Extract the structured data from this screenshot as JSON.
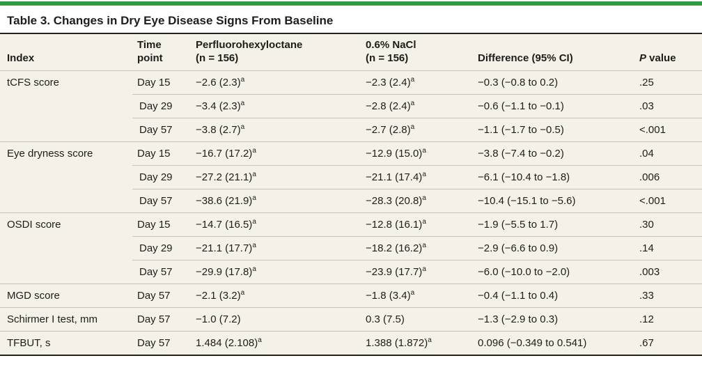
{
  "colors": {
    "accent": "#2e9d40",
    "table_bg": "#f3f1e8",
    "rule": "#22211c",
    "divider": "#c6c4b7"
  },
  "title": "Table 3. Changes in Dry Eye Disease Signs From Baseline",
  "table": {
    "header": {
      "index": "Index",
      "time_point": "Time\npoint",
      "drug": "Perfluorohexyloctane\n(n = 156)",
      "control": "0.6% NaCl\n(n = 156)",
      "difference": "Difference (95% CI)",
      "p_italic": "P",
      "p_rest": " value"
    },
    "groups": [
      {
        "index": "tCFS score",
        "rows": [
          {
            "time": "Day 15",
            "drug": "−2.6 (2.3)",
            "drug_sup": "a",
            "control": "−2.3 (2.4)",
            "control_sup": "a",
            "diff": "−0.3 (−0.8 to 0.2)",
            "p": ".25"
          },
          {
            "time": "Day 29",
            "drug": "−3.4 (2.3)",
            "drug_sup": "a",
            "control": "−2.8 (2.4)",
            "control_sup": "a",
            "diff": "−0.6 (−1.1 to −0.1)",
            "p": ".03"
          },
          {
            "time": "Day 57",
            "drug": "−3.8 (2.7)",
            "drug_sup": "a",
            "control": "−2.7 (2.8)",
            "control_sup": "a",
            "diff": "−1.1 (−1.7 to −0.5)",
            "p": "<.001"
          }
        ]
      },
      {
        "index": "Eye dryness score",
        "rows": [
          {
            "time": "Day 15",
            "drug": "−16.7 (17.2)",
            "drug_sup": "a",
            "control": "−12.9 (15.0)",
            "control_sup": "a",
            "diff": "−3.8 (−7.4 to −0.2)",
            "p": ".04"
          },
          {
            "time": "Day 29",
            "drug": "−27.2 (21.1)",
            "drug_sup": "a",
            "control": "−21.1 (17.4)",
            "control_sup": "a",
            "diff": "−6.1 (−10.4 to −1.8)",
            "p": ".006"
          },
          {
            "time": "Day 57",
            "drug": "−38.6 (21.9)",
            "drug_sup": "a",
            "control": "−28.3 (20.8)",
            "control_sup": "a",
            "diff": "−10.4 (−15.1 to −5.6)",
            "p": "<.001"
          }
        ]
      },
      {
        "index": "OSDI score",
        "rows": [
          {
            "time": "Day 15",
            "drug": "−14.7 (16.5)",
            "drug_sup": "a",
            "control": "−12.8 (16.1)",
            "control_sup": "a",
            "diff": "−1.9 (−5.5 to 1.7)",
            "p": ".30"
          },
          {
            "time": "Day 29",
            "drug": "−21.1 (17.7)",
            "drug_sup": "a",
            "control": "−18.2 (16.2)",
            "control_sup": "a",
            "diff": "−2.9 (−6.6 to 0.9)",
            "p": ".14"
          },
          {
            "time": "Day 57",
            "drug": "−29.9 (17.8)",
            "drug_sup": "a",
            "control": "−23.9 (17.7)",
            "control_sup": "a",
            "diff": "−6.0 (−10.0 to −2.0)",
            "p": ".003"
          }
        ]
      },
      {
        "index": "MGD score",
        "rows": [
          {
            "time": "Day 57",
            "drug": "−2.1 (3.2)",
            "drug_sup": "a",
            "control": "−1.8 (3.4)",
            "control_sup": "a",
            "diff": "−0.4 (−1.1 to 0.4)",
            "p": ".33"
          }
        ]
      },
      {
        "index": "Schirmer I test, mm",
        "rows": [
          {
            "time": "Day 57",
            "drug": "−1.0 (7.2)",
            "drug_sup": null,
            "control": "0.3 (7.5)",
            "control_sup": null,
            "diff": "−1.3 (−2.9 to 0.3)",
            "p": ".12"
          }
        ]
      },
      {
        "index": "TFBUT, s",
        "rows": [
          {
            "time": "Day 57",
            "drug": "1.484 (2.108)",
            "drug_sup": "a",
            "control": "1.388 (1.872)",
            "control_sup": "a",
            "diff": "0.096 (−0.349 to 0.541)",
            "p": ".67"
          }
        ]
      }
    ]
  }
}
